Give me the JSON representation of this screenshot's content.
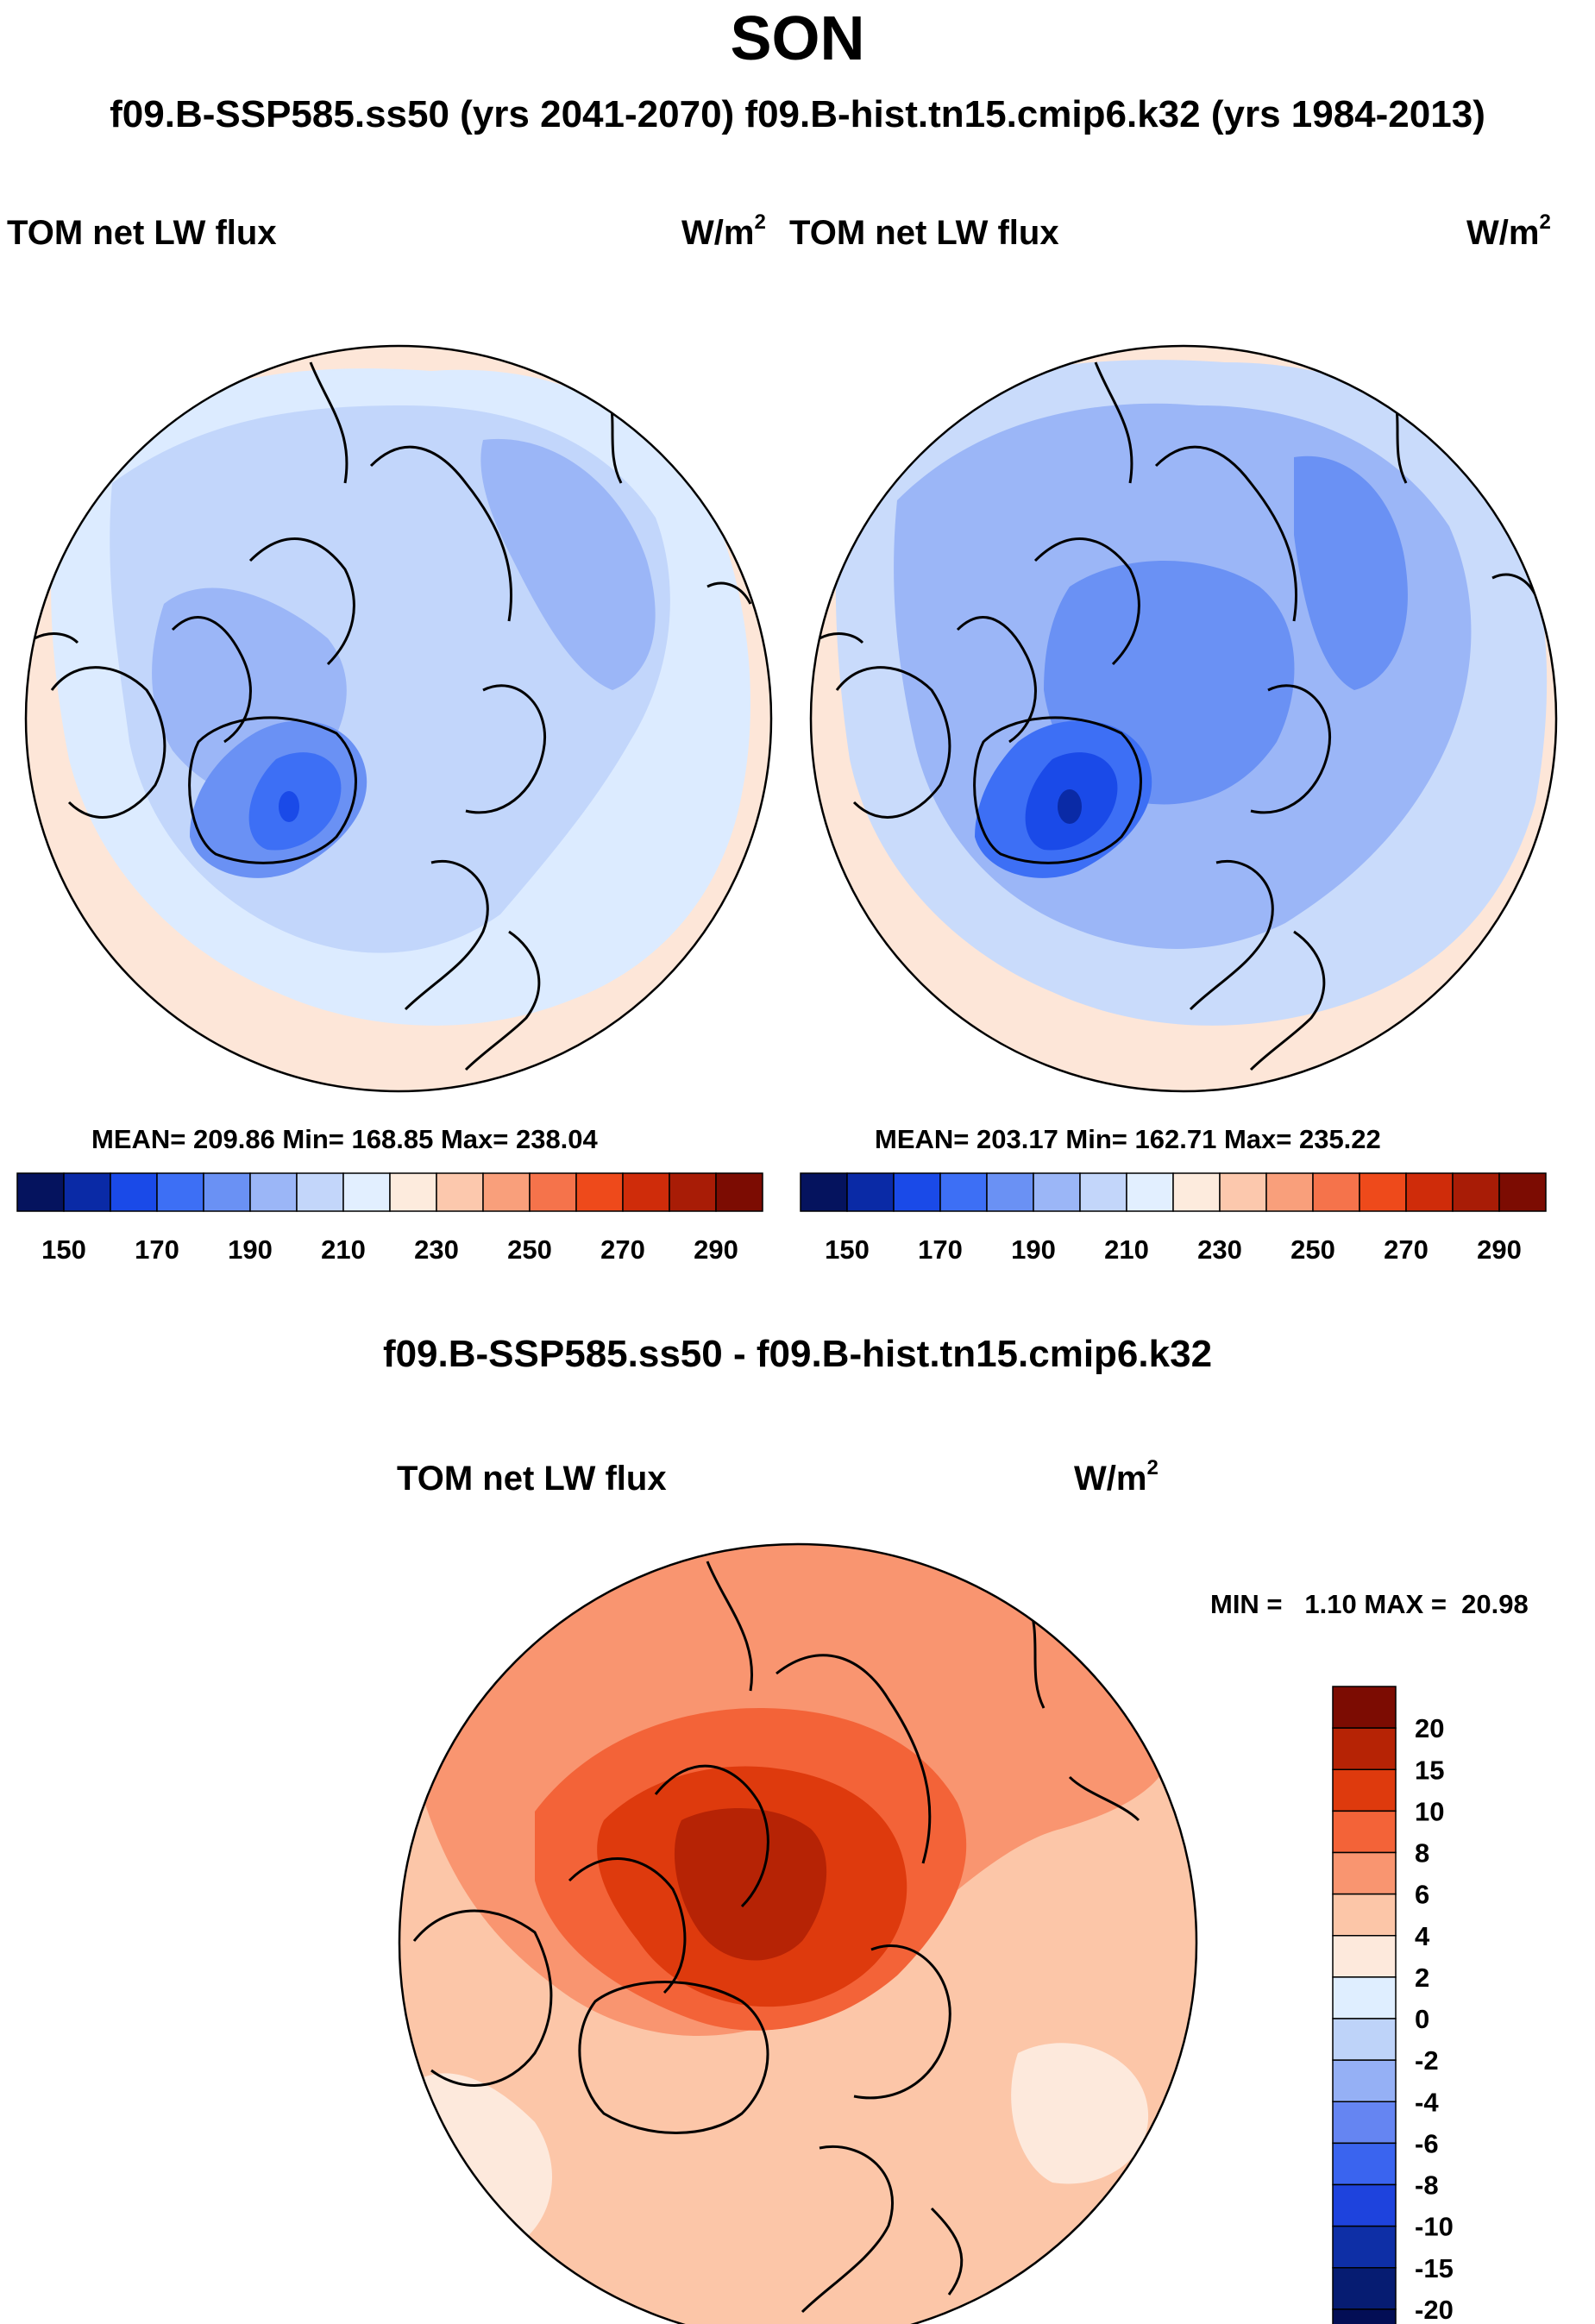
{
  "header": {
    "title": "SON",
    "subtitle": "f09.B-SSP585.ss50 (yrs 2041-2070)  f09.B-hist.tn15.cmip6.k32 (yrs 1984-2013)"
  },
  "panels": [
    {
      "label": "TOM net LW flux",
      "units_base": "W/m",
      "units_exp": "2",
      "mean": "209.86",
      "min": "168.85",
      "max": "238.04",
      "stats_text": "MEAN= 209.86  Min= 168.85  Max= 238.04"
    },
    {
      "label": "TOM net LW flux",
      "units_base": "W/m",
      "units_exp": "2",
      "mean": "203.17",
      "min": "162.71",
      "max": "235.22",
      "stats_text": "MEAN= 203.17  Min= 162.71  Max= 235.22"
    }
  ],
  "diff": {
    "title": "f09.B-SSP585.ss50 - f09.B-hist.tn15.cmip6.k32",
    "label": "TOM net LW flux",
    "units_base": "W/m",
    "units_exp": "2",
    "minmax_text": "MIN =   1.10 MAX =  20.98"
  },
  "chart_data": [
    {
      "type": "heatmap",
      "title": "TOM net LW flux",
      "units": "W/m2",
      "projection": "north polar stereographic",
      "mean": 209.86,
      "min": 168.85,
      "max": 238.04,
      "legend_ticks": [
        "150",
        "170",
        "190",
        "210",
        "230",
        "250",
        "270",
        "290"
      ],
      "levels": [
        140,
        150,
        160,
        170,
        180,
        190,
        200,
        210,
        220,
        230,
        240,
        250,
        260,
        270,
        280,
        290,
        300
      ]
    },
    {
      "type": "heatmap",
      "title": "TOM net LW flux",
      "units": "W/m2",
      "projection": "north polar stereographic",
      "mean": 203.17,
      "min": 162.71,
      "max": 235.22,
      "legend_ticks": [
        "150",
        "170",
        "190",
        "210",
        "230",
        "250",
        "270",
        "290"
      ],
      "levels": [
        140,
        150,
        160,
        170,
        180,
        190,
        200,
        210,
        220,
        230,
        240,
        250,
        260,
        270,
        280,
        290,
        300
      ]
    },
    {
      "type": "heatmap",
      "title": "f09.B-SSP585.ss50 - f09.B-hist.tn15.cmip6.k32",
      "units": "W/m2",
      "projection": "north polar stereographic",
      "min": 1.1,
      "max": 20.98,
      "legend_ticks": [
        "20",
        "15",
        "10",
        "8",
        "6",
        "4",
        "2",
        "0",
        "-2",
        "-4",
        "-6",
        "-8",
        "-10",
        "-15",
        "-20"
      ]
    }
  ],
  "colors": {
    "abs_scale": [
      "#05135e",
      "#0a2aa6",
      "#1a4ae8",
      "#3d6ff5",
      "#6a91f4",
      "#9bb6f7",
      "#c3d6fa",
      "#e2efff",
      "#fdebdd",
      "#fcc8ad",
      "#f99f7b",
      "#f5734b",
      "#ee4a1b",
      "#cf2c0a",
      "#a81c06",
      "#7c0c02"
    ],
    "diff_scale": [
      "#7c0c02",
      "#b62305",
      "#de3a0d",
      "#f36338",
      "#f99570",
      "#fcc6a8",
      "#fde9dc",
      "#dfeeff",
      "#bed3f9",
      "#95b0f5",
      "#6585f2",
      "#3a64ef",
      "#1e43dd",
      "#0e2fa6",
      "#061c72"
    ]
  }
}
